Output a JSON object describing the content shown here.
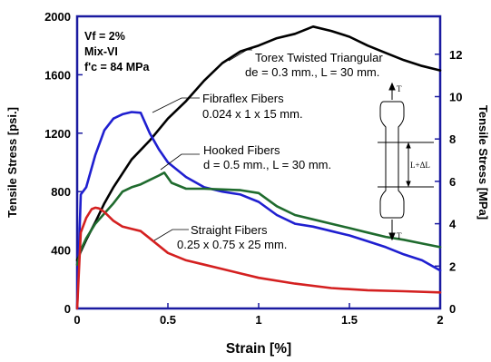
{
  "chart_data": {
    "type": "line",
    "xlabel": "Strain [%]",
    "ylabel": "Tensile Stress [psi.]",
    "ylabel_right": "Tensile Stress [MPa]",
    "xlim": [
      0,
      2
    ],
    "ylim": [
      0,
      2000
    ],
    "ylim_right": [
      0,
      13.79
    ],
    "x_ticks": [
      "0",
      "0.5",
      "1",
      "1.5",
      "2"
    ],
    "y_ticks": [
      "0",
      "400",
      "800",
      "1200",
      "1600",
      "2000"
    ],
    "y_ticks_right": [
      "0",
      "2",
      "4",
      "6",
      "8",
      "10",
      "12"
    ],
    "grid": false,
    "conditions": [
      "Vf = 2%",
      "Mix-VI",
      "f'c = 84 MPa"
    ],
    "series": [
      {
        "name": "Torex Twisted Triangular",
        "detail": "de = 0.3 mm., L = 30 mm.",
        "color": "#000000",
        "x": [
          0,
          0.02,
          0.05,
          0.1,
          0.15,
          0.2,
          0.3,
          0.4,
          0.5,
          0.6,
          0.7,
          0.8,
          0.9,
          1.0,
          1.1,
          1.2,
          1.3,
          1.4,
          1.5,
          1.6,
          1.7,
          1.8,
          1.9,
          2.0
        ],
        "y": [
          330,
          390,
          470,
          590,
          720,
          830,
          1020,
          1150,
          1300,
          1420,
          1560,
          1680,
          1760,
          1800,
          1850,
          1880,
          1930,
          1900,
          1860,
          1800,
          1750,
          1700,
          1660,
          1630
        ]
      },
      {
        "name": "Fibraflex Fibers",
        "detail": "0.024 x 1 x 15 mm.",
        "color": "#1f1fd0",
        "x": [
          0,
          0.02,
          0.05,
          0.1,
          0.15,
          0.2,
          0.25,
          0.3,
          0.35,
          0.4,
          0.45,
          0.5,
          0.6,
          0.7,
          0.8,
          0.9,
          1.0,
          1.1,
          1.2,
          1.3,
          1.4,
          1.5,
          1.6,
          1.7,
          1.8,
          1.9,
          2.0
        ],
        "y": [
          0,
          780,
          830,
          1050,
          1220,
          1300,
          1330,
          1345,
          1340,
          1200,
          1090,
          1000,
          900,
          830,
          800,
          780,
          730,
          640,
          580,
          560,
          530,
          500,
          460,
          420,
          370,
          330,
          260
        ]
      },
      {
        "name": "Hooked Fibers",
        "detail": "d = 0.5 mm., L = 30 mm.",
        "color": "#1f6b2e",
        "x": [
          0,
          0.02,
          0.05,
          0.1,
          0.15,
          0.2,
          0.25,
          0.3,
          0.35,
          0.4,
          0.45,
          0.48,
          0.52,
          0.6,
          0.7,
          0.8,
          0.9,
          1.0,
          1.1,
          1.2,
          1.3,
          1.4,
          1.5,
          1.6,
          1.7,
          1.8,
          1.9,
          2.0
        ],
        "y": [
          300,
          400,
          480,
          580,
          650,
          720,
          800,
          830,
          850,
          880,
          910,
          930,
          860,
          820,
          820,
          815,
          810,
          790,
          700,
          640,
          610,
          580,
          550,
          520,
          490,
          470,
          445,
          420
        ]
      },
      {
        "name": "Straight Fibers",
        "detail": "0.25 x 0.75 x 25 mm.",
        "color": "#d42020",
        "x": [
          0,
          0.02,
          0.05,
          0.08,
          0.1,
          0.12,
          0.15,
          0.2,
          0.25,
          0.3,
          0.35,
          0.4,
          0.5,
          0.6,
          0.7,
          0.8,
          0.9,
          1.0,
          1.2,
          1.4,
          1.6,
          1.8,
          2.0
        ],
        "y": [
          0,
          520,
          620,
          680,
          690,
          685,
          660,
          600,
          560,
          545,
          530,
          480,
          380,
          330,
          300,
          270,
          240,
          210,
          170,
          140,
          125,
          118,
          110
        ]
      }
    ],
    "annotations": [
      {
        "text": "Torex Twisted Triangular",
        "line2": "de = 0.3 mm., L = 30 mm."
      },
      {
        "text": "Fibraflex Fibers",
        "line2": "0.024 x 1 x 15 mm."
      },
      {
        "text": "Hooked Fibers",
        "line2": "d = 0.5 mm., L = 30 mm."
      },
      {
        "text": "Straight Fibers",
        "line2": "0.25 x 0.75 x 25 mm."
      }
    ],
    "specimen": {
      "top_label": "T",
      "bottom_label": "T",
      "gauge_label": "L+ΔL"
    }
  }
}
